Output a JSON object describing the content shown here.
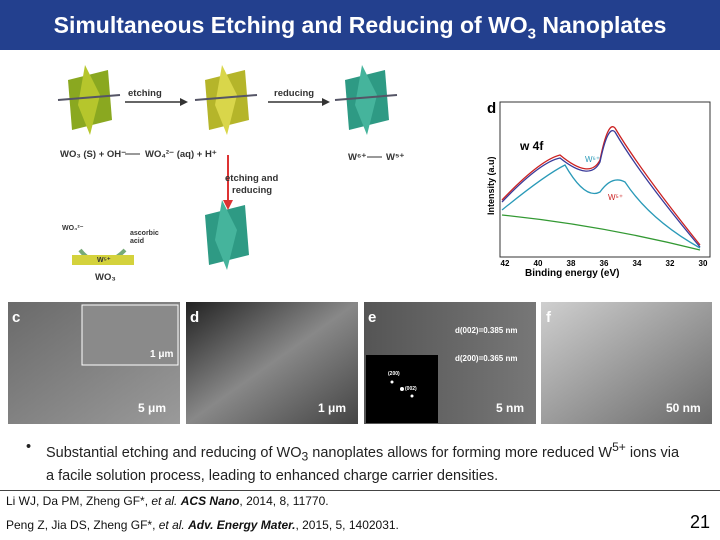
{
  "header": {
    "title_parts": [
      "Simultaneous Etching and Reducing of WO",
      "3",
      " Nanoplates"
    ]
  },
  "schematic": {
    "etching": "etching",
    "reducing": "reducing",
    "reaction_left": "WO₃ (S) + OH⁻",
    "reaction_right": "WO₄²⁻ (aq) + H⁺",
    "w6": "W⁶⁺",
    "w5": "W⁵⁺",
    "etch_reduce_1": "etching and",
    "etch_reduce_2": "reducing",
    "wo4": "WO₄²⁻",
    "ascorbic_1": "ascorbic",
    "ascorbic_2": "acid",
    "w5_small": "W⁵⁺",
    "wo3": "WO₃"
  },
  "xps": {
    "panel": "d",
    "peak": "w 4f",
    "ylabel": "Intensity (a.u)",
    "w6": "W⁶⁺",
    "w5": "W⁵⁺",
    "xticks": [
      "42",
      "40",
      "38",
      "36",
      "34",
      "32",
      "30"
    ],
    "xlabel": "Binding energy (eV)"
  },
  "micrographs": {
    "c": {
      "letter": "c",
      "inset_scale": "1 μm",
      "scale": "5 μm"
    },
    "d": {
      "letter": "d",
      "scale": "1 μm"
    },
    "e": {
      "letter": "e",
      "d002": "d(002)=0.385 nm",
      "d200": "d(200)=0.365 nm",
      "spot1": "(200)",
      "spot2": "(002)",
      "scale": "5 nm"
    },
    "f": {
      "letter": "f",
      "scale": "50 nm"
    }
  },
  "bullet": {
    "parts": [
      "Substantial etching and reducing of WO",
      "3",
      " nanoplates allows for forming more reduced W",
      "5+",
      " ions via a facile solution process, leading to enhanced charge carrier densities."
    ]
  },
  "references": [
    {
      "authors": "Li WJ, Da PM, Zheng GF*, ",
      "etal": "et al.",
      "journal": "ACS Nano",
      "details": ", 2014, 8, 11770."
    },
    {
      "authors": "Peng Z, Jia DS, Zheng GF*, ",
      "etal": "et al.",
      "journal": "Adv. Energy Mater.",
      "details": ", 2015, 5, 1402031."
    }
  ],
  "page_number": "21"
}
